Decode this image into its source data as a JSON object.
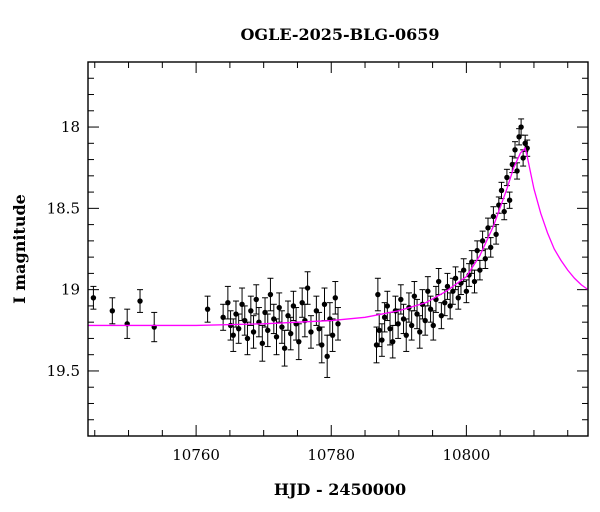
{
  "chart_data": {
    "type": "scatter",
    "title": "OGLE-2025-BLG-0659",
    "xlabel": "HJD - 2450000",
    "ylabel": "I magnitude",
    "xlim": [
      10744,
      10818
    ],
    "ylim": [
      19.9,
      17.6
    ],
    "y_inverted": true,
    "x_ticks": [
      10760,
      10780,
      10800
    ],
    "x_tick_labels": [
      "10760",
      "10780",
      "10800"
    ],
    "y_ticks": [
      18,
      18.5,
      19,
      19.5
    ],
    "y_tick_labels": [
      "18",
      "18.5",
      "19",
      "19.5"
    ],
    "grid": false,
    "colors": {
      "points": "#000000",
      "model": "#ff00ff",
      "frame": "#000000"
    },
    "series": [
      {
        "type": "scatter_errorbar",
        "points": [
          [
            10744.8,
            19.05,
            0.07
          ],
          [
            10747.6,
            19.13,
            0.08
          ],
          [
            10749.8,
            19.21,
            0.09
          ],
          [
            10751.7,
            19.07,
            0.07
          ],
          [
            10753.8,
            19.23,
            0.09
          ],
          [
            10761.7,
            19.12,
            0.08
          ],
          [
            10764.0,
            19.17,
            0.08
          ],
          [
            10764.7,
            19.08,
            0.1
          ],
          [
            10765.1,
            19.22,
            0.09
          ],
          [
            10765.5,
            19.28,
            0.1
          ],
          [
            10765.9,
            19.15,
            0.08
          ],
          [
            10766.3,
            19.24,
            0.09
          ],
          [
            10766.8,
            19.09,
            0.1
          ],
          [
            10767.2,
            19.19,
            0.09
          ],
          [
            10767.6,
            19.3,
            0.1
          ],
          [
            10768.1,
            19.13,
            0.09
          ],
          [
            10768.5,
            19.26,
            0.1
          ],
          [
            10768.9,
            19.06,
            0.09
          ],
          [
            10769.3,
            19.2,
            0.09
          ],
          [
            10769.8,
            19.33,
            0.11
          ],
          [
            10770.2,
            19.14,
            0.09
          ],
          [
            10770.6,
            19.25,
            0.1
          ],
          [
            10771.0,
            19.03,
            0.1
          ],
          [
            10771.5,
            19.18,
            0.09
          ],
          [
            10771.9,
            19.29,
            0.11
          ],
          [
            10772.3,
            19.11,
            0.09
          ],
          [
            10772.7,
            19.23,
            0.1
          ],
          [
            10773.1,
            19.36,
            0.11
          ],
          [
            10773.6,
            19.16,
            0.09
          ],
          [
            10774.0,
            19.27,
            0.1
          ],
          [
            10774.4,
            19.1,
            0.09
          ],
          [
            10774.8,
            19.21,
            0.1
          ],
          [
            10775.2,
            19.32,
            0.11
          ],
          [
            10775.7,
            19.08,
            0.09
          ],
          [
            10776.1,
            19.19,
            0.1
          ],
          [
            10776.5,
            18.99,
            0.1
          ],
          [
            10777.0,
            19.26,
            0.1
          ],
          [
            10777.8,
            19.13,
            0.09
          ],
          [
            10778.2,
            19.24,
            0.1
          ],
          [
            10778.6,
            19.34,
            0.11
          ],
          [
            10779.0,
            19.09,
            0.1
          ],
          [
            10779.4,
            19.41,
            0.13
          ],
          [
            10779.8,
            19.18,
            0.1
          ],
          [
            10780.2,
            19.28,
            0.1
          ],
          [
            10780.6,
            19.05,
            0.1
          ],
          [
            10781.0,
            19.21,
            0.1
          ],
          [
            10786.7,
            19.34,
            0.11
          ],
          [
            10786.9,
            19.03,
            0.1
          ],
          [
            10787.1,
            19.25,
            0.1
          ],
          [
            10787.5,
            19.31,
            0.1
          ],
          [
            10787.9,
            19.17,
            0.09
          ],
          [
            10788.3,
            19.1,
            0.09
          ],
          [
            10788.7,
            19.24,
            0.1
          ],
          [
            10789.1,
            19.32,
            0.1
          ],
          [
            10789.5,
            19.13,
            0.09
          ],
          [
            10789.9,
            19.21,
            0.09
          ],
          [
            10790.3,
            19.06,
            0.09
          ],
          [
            10790.7,
            19.18,
            0.09
          ],
          [
            10791.1,
            19.28,
            0.1
          ],
          [
            10791.5,
            19.11,
            0.09
          ],
          [
            10791.9,
            19.22,
            0.09
          ],
          [
            10792.3,
            19.04,
            0.09
          ],
          [
            10792.7,
            19.15,
            0.09
          ],
          [
            10793.1,
            19.26,
            0.1
          ],
          [
            10793.5,
            19.09,
            0.09
          ],
          [
            10793.9,
            19.19,
            0.09
          ],
          [
            10794.3,
            19.01,
            0.09
          ],
          [
            10794.7,
            19.12,
            0.08
          ],
          [
            10795.1,
            19.22,
            0.09
          ],
          [
            10795.5,
            19.06,
            0.08
          ],
          [
            10795.9,
            18.95,
            0.08
          ],
          [
            10796.3,
            19.16,
            0.08
          ],
          [
            10796.8,
            19.08,
            0.08
          ],
          [
            10797.2,
            18.98,
            0.08
          ],
          [
            10797.6,
            19.1,
            0.08
          ],
          [
            10798.0,
            19.01,
            0.08
          ],
          [
            10798.4,
            18.93,
            0.07
          ],
          [
            10798.8,
            19.05,
            0.07
          ],
          [
            10799.2,
            18.96,
            0.07
          ],
          [
            10799.6,
            18.88,
            0.07
          ],
          [
            10800.0,
            19.01,
            0.07
          ],
          [
            10800.4,
            18.91,
            0.07
          ],
          [
            10800.8,
            18.83,
            0.07
          ],
          [
            10801.2,
            18.95,
            0.07
          ],
          [
            10801.6,
            18.76,
            0.06
          ],
          [
            10802.0,
            18.88,
            0.06
          ],
          [
            10802.4,
            18.7,
            0.06
          ],
          [
            10802.8,
            18.81,
            0.06
          ],
          [
            10803.2,
            18.62,
            0.06
          ],
          [
            10803.6,
            18.74,
            0.06
          ],
          [
            10804.0,
            18.55,
            0.06
          ],
          [
            10804.4,
            18.66,
            0.06
          ],
          [
            10804.8,
            18.48,
            0.05
          ],
          [
            10805.2,
            18.39,
            0.05
          ],
          [
            10805.6,
            18.52,
            0.05
          ],
          [
            10806.0,
            18.31,
            0.05
          ],
          [
            10806.4,
            18.45,
            0.05
          ],
          [
            10806.8,
            18.23,
            0.05
          ],
          [
            10807.2,
            18.14,
            0.05
          ],
          [
            10807.5,
            18.27,
            0.05
          ],
          [
            10807.8,
            18.06,
            0.05
          ],
          [
            10808.1,
            18.0,
            0.05
          ],
          [
            10808.4,
            18.19,
            0.05
          ],
          [
            10808.7,
            18.1,
            0.05
          ],
          [
            10809.0,
            18.13,
            0.05
          ]
        ]
      },
      {
        "type": "model_line",
        "x": [
          10744,
          10750,
          10760,
          10770,
          10780,
          10785,
          10790,
          10794,
          10797,
          10800,
          10802,
          10804,
          10806,
          10807,
          10808,
          10808.7,
          10809,
          10810,
          10811,
          10812,
          10813,
          10814,
          10815,
          10816,
          10817,
          10818
        ],
        "y": [
          19.22,
          19.22,
          19.22,
          19.21,
          19.19,
          19.17,
          19.13,
          19.08,
          19.01,
          18.92,
          18.79,
          18.61,
          18.38,
          18.25,
          18.16,
          18.13,
          18.18,
          18.38,
          18.53,
          18.65,
          18.75,
          18.82,
          18.88,
          18.93,
          18.97,
          19.0
        ]
      }
    ]
  }
}
